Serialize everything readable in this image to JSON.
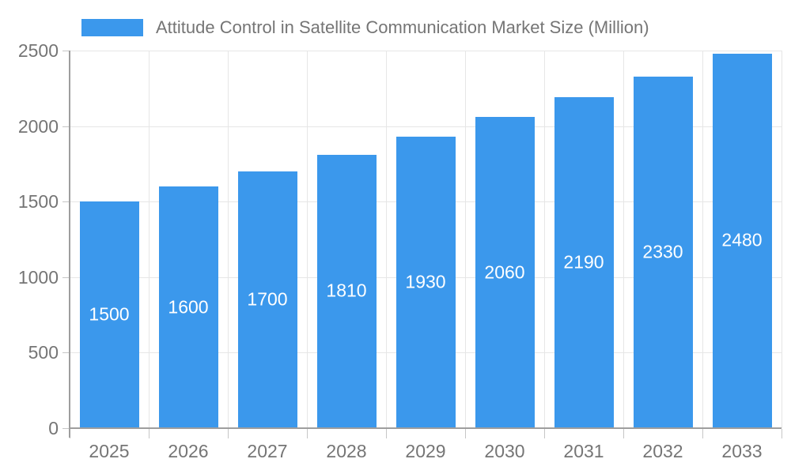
{
  "legend": {
    "label": "Attitude Control in Satellite Communication Market Size (Million)"
  },
  "chart_data": {
    "type": "bar",
    "title": "Attitude Control in Satellite Communication Market Size (Million)",
    "categories": [
      "2025",
      "2026",
      "2027",
      "2028",
      "2029",
      "2030",
      "2031",
      "2032",
      "2033"
    ],
    "values": [
      1500,
      1600,
      1700,
      1810,
      1930,
      2060,
      2190,
      2330,
      2480
    ],
    "xlabel": "",
    "ylabel": "",
    "ylim": [
      0,
      2500
    ],
    "yticks": [
      0,
      500,
      1000,
      1500,
      2000,
      2500
    ],
    "grid": true,
    "legend_position": "top-left",
    "bar_color": "#3b98ec",
    "value_label_color": "#ffffff",
    "axis_text_color": "#757575",
    "gridline_color": "#e6e6e6",
    "axis_line_color": "#9e9e9e",
    "tick_color": "#c6c6c6"
  }
}
